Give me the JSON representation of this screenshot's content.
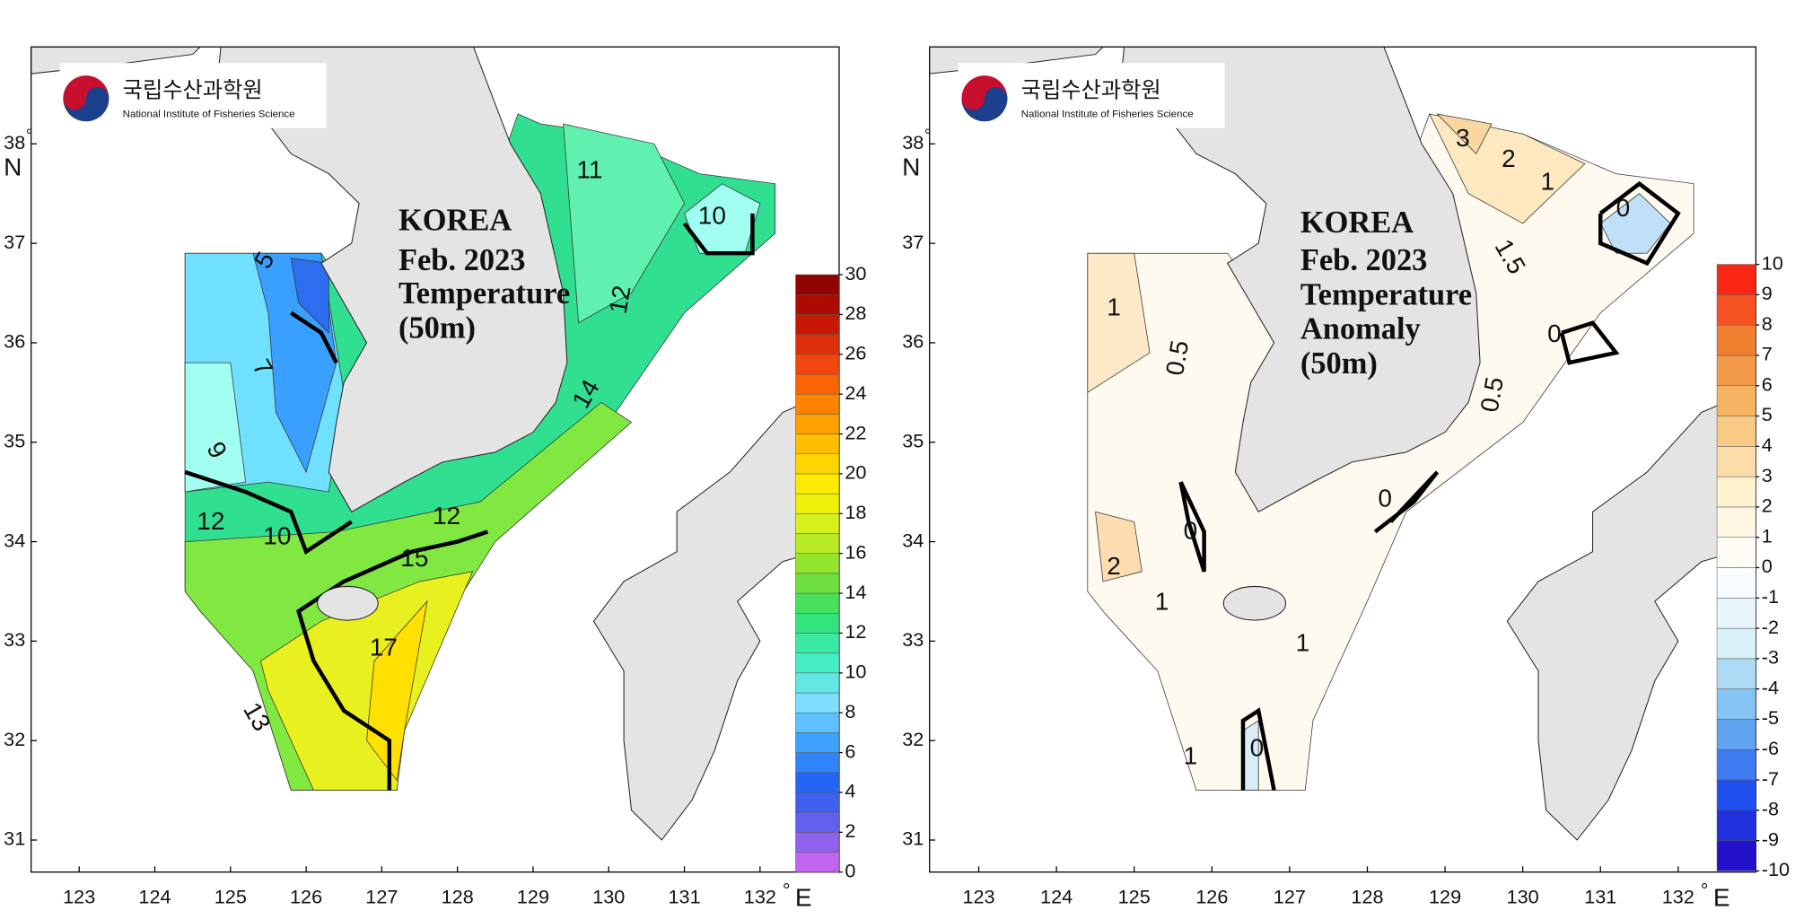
{
  "panels": [
    {
      "logo_korean": "국립수산과학원",
      "logo_english": "National Institute of Fisheries Science",
      "title_lines": [
        "KOREA",
        "Feb. 2023",
        "Temperature",
        "(50m)"
      ],
      "lat_ticks": [
        31,
        32,
        33,
        34,
        35,
        36,
        37,
        38
      ],
      "lon_ticks": [
        123,
        124,
        125,
        126,
        127,
        128,
        129,
        130,
        131,
        132
      ],
      "degree_sign": "°",
      "lat_label": "N",
      "lon_label": "E",
      "colorbar_ticks": [
        0,
        2,
        4,
        6,
        8,
        10,
        12,
        14,
        16,
        18,
        20,
        22,
        24,
        26,
        28,
        30
      ],
      "colormap": [
        "#d966f0",
        "#7060f0",
        "#2060f0",
        "#3ca0ff",
        "#80e0ff",
        "#40f0c0",
        "#30e070",
        "#80e030",
        "#d0f020",
        "#fff000",
        "#ffc000",
        "#ff8000",
        "#f04010",
        "#c01000",
        "#800000"
      ],
      "contour_labels": [
        5,
        7,
        9,
        10,
        12,
        12,
        15,
        17,
        13,
        11,
        10,
        12,
        14
      ]
    },
    {
      "logo_korean": "국립수산과학원",
      "logo_english": "National Institute of Fisheries Science",
      "title_lines": [
        "KOREA",
        "Feb. 2023",
        "Temperature",
        "Anomaly",
        "(50m)"
      ],
      "lat_ticks": [
        31,
        32,
        33,
        34,
        35,
        36,
        37,
        38
      ],
      "lon_ticks": [
        123,
        124,
        125,
        126,
        127,
        128,
        129,
        130,
        131,
        132
      ],
      "degree_sign": "°",
      "lat_label": "N",
      "lon_label": "E",
      "colorbar_ticks": [
        -10,
        -9,
        -8,
        -7,
        -6,
        -5,
        -4,
        -3,
        -2,
        -1,
        0,
        1,
        2,
        3,
        4,
        5,
        6,
        7,
        8,
        9,
        10
      ],
      "colormap": [
        "#2200c0",
        "#2050f0",
        "#70b8f0",
        "#d8f0f8",
        "#ffffff",
        "#fff0d0",
        "#f8c070",
        "#f08030",
        "#ff1010"
      ],
      "contour_labels": [
        3,
        2,
        1,
        0,
        1.5,
        0,
        1,
        0.5,
        0.5,
        2,
        1,
        0,
        0,
        1,
        0,
        1
      ]
    }
  ]
}
